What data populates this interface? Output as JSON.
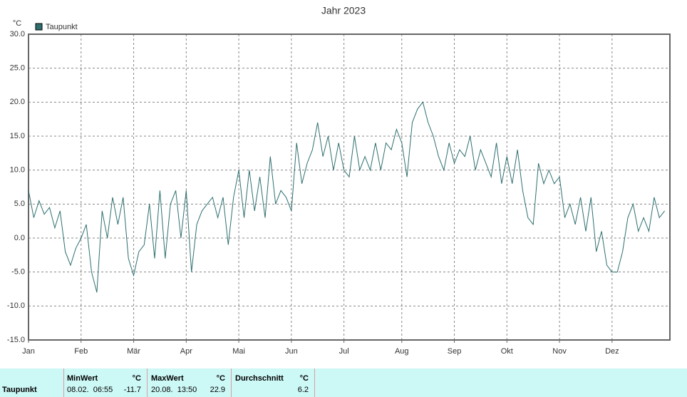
{
  "chart_data": {
    "type": "line",
    "title": "Jahr 2023",
    "y_unit": "°C",
    "categories": [
      "Jan",
      null,
      null,
      null,
      null,
      null,
      null,
      null,
      null,
      null,
      "Feb",
      null,
      null,
      null,
      null,
      null,
      null,
      null,
      null,
      null,
      "Mär",
      null,
      null,
      null,
      null,
      null,
      null,
      null,
      null,
      null,
      "Apr",
      null,
      null,
      null,
      null,
      null,
      null,
      null,
      null,
      null,
      "Mai",
      null,
      null,
      null,
      null,
      null,
      null,
      null,
      null,
      null,
      "Jun",
      null,
      null,
      null,
      null,
      null,
      null,
      null,
      null,
      null,
      "Jul",
      null,
      null,
      null,
      null,
      null,
      null,
      null,
      null,
      null,
      null,
      "Aug",
      null,
      null,
      null,
      null,
      null,
      null,
      null,
      null,
      null,
      "Sep",
      null,
      null,
      null,
      null,
      null,
      null,
      null,
      null,
      null,
      "Okt",
      null,
      null,
      null,
      null,
      null,
      null,
      null,
      null,
      null,
      "Nov",
      null,
      null,
      null,
      null,
      null,
      null,
      null,
      null,
      null,
      "Dez",
      null,
      null,
      null,
      null,
      null,
      null,
      null,
      null,
      null,
      null
    ],
    "series": [
      {
        "name": "Taupunkt",
        "color": "#2f6f6f",
        "values": [
          7,
          3,
          5.5,
          3.5,
          4.5,
          1.5,
          4,
          -2,
          -4,
          -1.5,
          0,
          2,
          -5,
          -8,
          4,
          0,
          6,
          2,
          6,
          -3,
          -5.5,
          -2,
          -1,
          5,
          -3,
          7,
          -3,
          5,
          7,
          0,
          7,
          -5,
          2,
          4,
          5,
          6,
          3,
          6,
          -1,
          6,
          10,
          3,
          10,
          4,
          9,
          3,
          12,
          5,
          7,
          6,
          4,
          14,
          8,
          11,
          13,
          17,
          12,
          15,
          10,
          14,
          10,
          9,
          15,
          10,
          12,
          10,
          14,
          10,
          14,
          13,
          16,
          14,
          9,
          17,
          19,
          20,
          17,
          15,
          12,
          10,
          14,
          11,
          13,
          12,
          15,
          10,
          13,
          11,
          9,
          14,
          8,
          12,
          8,
          13,
          7,
          3,
          2,
          11,
          8,
          10,
          8,
          9,
          3,
          5,
          2,
          6,
          1,
          6,
          -2,
          1,
          -4,
          -5,
          -5,
          -2,
          3,
          5,
          1,
          3,
          1,
          6,
          3,
          4
        ]
      }
    ],
    "ylim": [
      -15,
      30
    ],
    "yticks": [
      {
        "value": -15,
        "label": "-15.0"
      },
      {
        "value": -10,
        "label": "-10.0"
      },
      {
        "value": -5,
        "label": "-5.0"
      },
      {
        "value": 0,
        "label": "0.0"
      },
      {
        "value": 5,
        "label": "5.0"
      },
      {
        "value": 10,
        "label": "10.0"
      },
      {
        "value": 15,
        "label": "15.0"
      },
      {
        "value": 20,
        "label": "20.0"
      },
      {
        "value": 25,
        "label": "25.0"
      },
      {
        "value": 30,
        "label": "30.0"
      }
    ],
    "grid": true
  },
  "table": {
    "row_label": "Taupunkt",
    "columns": [
      {
        "header": "MinWert",
        "unit": "°C",
        "time": "08.02.  06:55",
        "value": -11.7
      },
      {
        "header": "MaxWert",
        "unit": "°C",
        "time": "20.08.  13:50",
        "value": 22.9
      },
      {
        "header": "Durchschnitt",
        "unit": "°C",
        "value": 6.2
      }
    ]
  }
}
